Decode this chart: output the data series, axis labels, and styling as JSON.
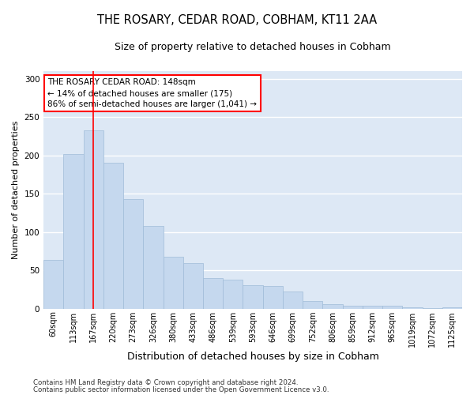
{
  "title": "THE ROSARY, CEDAR ROAD, COBHAM, KT11 2AA",
  "subtitle": "Size of property relative to detached houses in Cobham",
  "xlabel": "Distribution of detached houses by size in Cobham",
  "ylabel": "Number of detached properties",
  "bar_labels": [
    "60sqm",
    "113sqm",
    "167sqm",
    "220sqm",
    "273sqm",
    "326sqm",
    "380sqm",
    "433sqm",
    "486sqm",
    "539sqm",
    "593sqm",
    "646sqm",
    "699sqm",
    "752sqm",
    "806sqm",
    "859sqm",
    "912sqm",
    "965sqm",
    "1019sqm",
    "1072sqm",
    "1125sqm"
  ],
  "bar_values": [
    64,
    202,
    233,
    191,
    143,
    108,
    68,
    60,
    40,
    38,
    31,
    30,
    22,
    10,
    6,
    4,
    4,
    4,
    2,
    1,
    2
  ],
  "bar_color": "#c5d8ee",
  "bar_edge_color": "#a0bcd8",
  "fig_background_color": "#ffffff",
  "plot_background_color": "#dde8f5",
  "grid_color": "#ffffff",
  "annotation_box_text": "THE ROSARY CEDAR ROAD: 148sqm\n← 14% of detached houses are smaller (175)\n86% of semi-detached houses are larger (1,041) →",
  "red_line_x": 2.0,
  "footer_line1": "Contains HM Land Registry data © Crown copyright and database right 2024.",
  "footer_line2": "Contains public sector information licensed under the Open Government Licence v3.0.",
  "ylim": [
    0,
    310
  ],
  "yticks": [
    0,
    50,
    100,
    150,
    200,
    250,
    300
  ],
  "title_fontsize": 10.5,
  "subtitle_fontsize": 9,
  "ylabel_fontsize": 8,
  "xlabel_fontsize": 9,
  "tick_fontsize": 7,
  "annotation_fontsize": 7.5,
  "footer_fontsize": 6.2
}
